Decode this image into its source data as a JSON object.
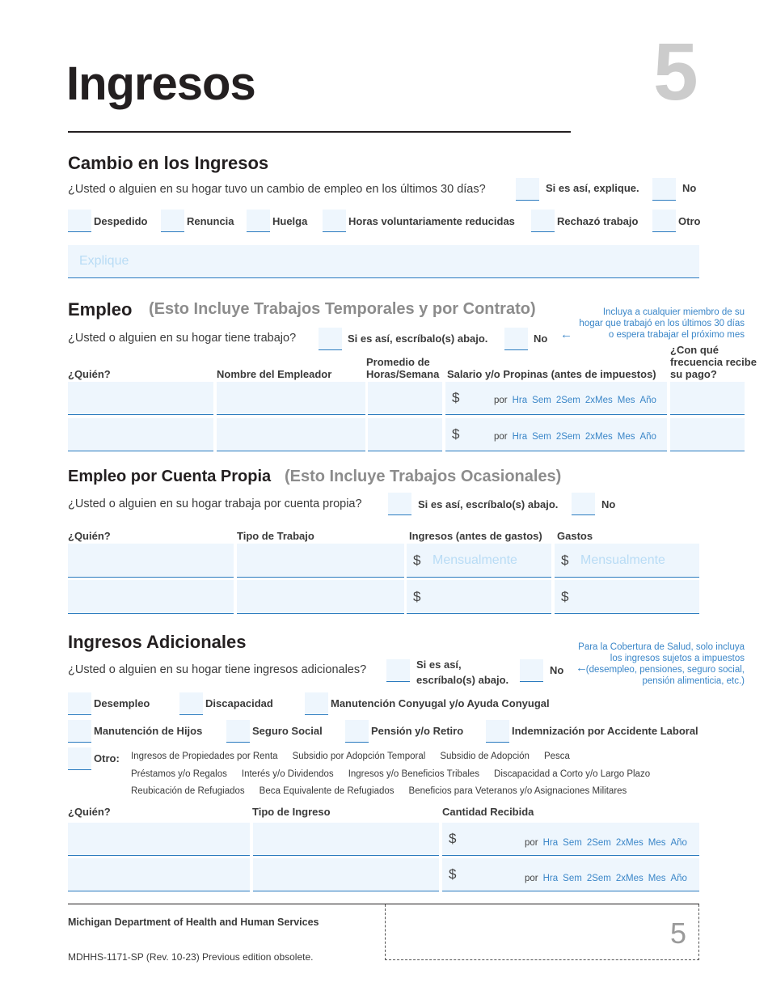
{
  "title": "Ingresos",
  "page_number": "5",
  "cambio": {
    "heading": "Cambio en los Ingresos",
    "question": "¿Usted o alguien en su hogar tuvo un cambio de empleo en los últimos 30 días?",
    "yes_label": "Si es así, explique.",
    "no_label": "No",
    "options": [
      "Despedido",
      "Renuncia",
      "Huelga",
      "Horas voluntariamente reducidas",
      "Rechazó trabajo",
      "Otro"
    ],
    "explain_placeholder": "Explique"
  },
  "empleo": {
    "heading": "Empleo",
    "subheading": "(Esto Incluye Trabajos Temporales y por Contrato)",
    "note": "Incluya a cualquier miembro de su hogar que trabajó en los últimos 30 días o espera trabajar el próximo mes",
    "question": "¿Usted o alguien en su hogar tiene trabajo?",
    "yes_label": "Si es así, escríbalo(s) abajo.",
    "no_label": "No",
    "columns": [
      "¿Quién?",
      "Nombre del Empleador",
      "Promedio de Horas/Semana",
      "Salario y/o Propinas (antes de impuestos)",
      "¿Con qué frecuencia recibe su pago?"
    ],
    "currency": "$",
    "per": "por",
    "frequency_options": [
      "Hra",
      "Sem",
      "2Sem",
      "2xMes",
      "Mes",
      "Año"
    ]
  },
  "cuenta_propia": {
    "heading": "Empleo por Cuenta Propia",
    "subheading": "(Esto Incluye Trabajos Ocasionales)",
    "question": "¿Usted o alguien en su hogar trabaja por cuenta propia?",
    "yes_label": "Si es así, escríbalo(s) abajo.",
    "no_label": "No",
    "columns": [
      "¿Quién?",
      "Tipo de Trabajo",
      "Ingresos (antes de gastos)",
      "Gastos"
    ],
    "currency": "$",
    "placeholder": "Mensualmente"
  },
  "adicionales": {
    "heading": "Ingresos Adicionales",
    "note": "Para la Cobertura de Salud, solo incluya los ingresos sujetos a impuestos (desempleo, pensiones, seguro social, pensión alimenticia, etc.)",
    "question": "¿Usted o alguien en su hogar tiene ingresos adicionales?",
    "yes_label": "Si es así, escríbalo(s)  abajo.",
    "no_label": "No",
    "options": [
      "Desempleo",
      "Discapacidad",
      "Manutención Conyugal y/o Ayuda Conyugal",
      "Manutención de Hijos",
      "Seguro Social",
      "Pensión y/o Retiro",
      "Indemnización por Accidente Laboral"
    ],
    "other_label": "Otro:",
    "other_lines": [
      [
        "Ingresos de Propiedades por Renta",
        "Subsidio por Adopción Temporal",
        "Subsidio de Adopción",
        "Pesca"
      ],
      [
        "Préstamos y/o Regalos",
        "Interés y/o Dividendos",
        "Ingresos y/o Beneficios Tribales",
        "Discapacidad a Corto y/o Largo Plazo"
      ],
      [
        "Reubicación de Refugiados",
        "Beca Equivalente de Refugiados",
        "Beneficios para Veteranos y/o Asignaciones Militares"
      ]
    ],
    "columns": [
      "¿Quién?",
      "Tipo de Ingreso",
      "Cantidad Recibida"
    ],
    "currency": "$",
    "per": "por",
    "frequency_options": [
      "Hra",
      "Sem",
      "2Sem",
      "2xMes",
      "Mes",
      "Año"
    ]
  },
  "footer": {
    "agency": "Michigan Department of Health and Human Services",
    "form_id": "MDHHS-1171-SP (Rev. 10-23) Previous edition obsolete.",
    "page_number": "5"
  },
  "colors": {
    "field_bg": "#eef6fd",
    "field_line": "#2b7bbf",
    "note_blue": "#3a86c8",
    "placeholder": "#b9dcf5"
  }
}
